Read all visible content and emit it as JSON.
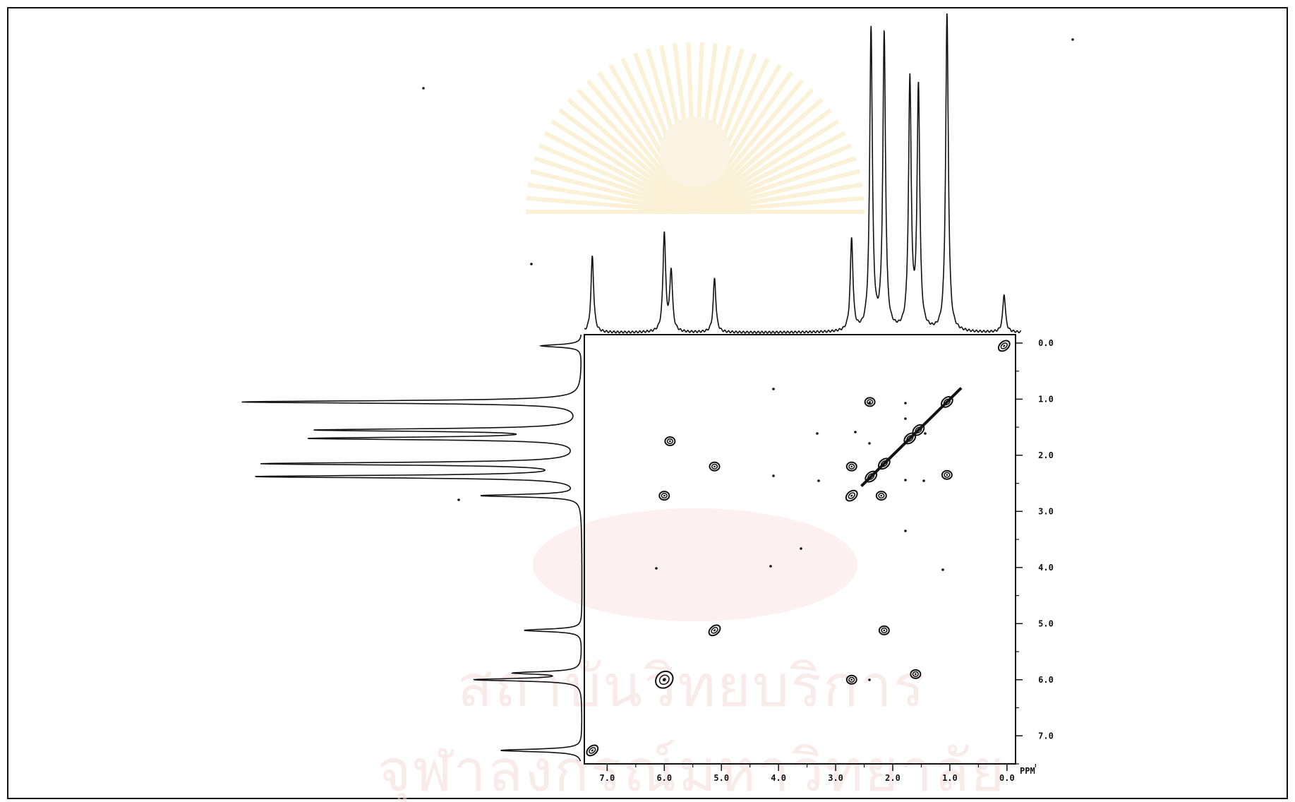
{
  "chart_data": {
    "type": "2D NMR COSY contour plot",
    "x_axis": {
      "unit": "PPM",
      "range": [
        7.4,
        -0.15
      ],
      "ticks": [
        "7.0",
        "6.0",
        "5.0",
        "4.0",
        "3.0",
        "2.0",
        "1.0",
        "0.0"
      ]
    },
    "y_axis": {
      "unit": "PPM",
      "range": [
        -0.15,
        7.5
      ],
      "ticks": [
        "0.0",
        "1.0",
        "2.0",
        "3.0",
        "4.0",
        "5.0",
        "6.0",
        "7.0"
      ]
    },
    "projection_peaks": [
      {
        "ppm": 7.26,
        "height": 0.24
      },
      {
        "ppm": 6.0,
        "height": 0.31
      },
      {
        "ppm": 5.88,
        "height": 0.19
      },
      {
        "ppm": 5.12,
        "height": 0.17
      },
      {
        "ppm": 2.72,
        "height": 0.29
      },
      {
        "ppm": 2.38,
        "height": 0.95
      },
      {
        "ppm": 2.15,
        "height": 0.93
      },
      {
        "ppm": 1.7,
        "height": 0.78
      },
      {
        "ppm": 1.55,
        "height": 0.76
      },
      {
        "ppm": 1.05,
        "height": 1.0
      },
      {
        "ppm": 0.05,
        "height": 0.12
      }
    ],
    "diagonal_peaks": [
      {
        "x": 7.26,
        "y": 7.26
      },
      {
        "x": 6.0,
        "y": 6.0
      },
      {
        "x": 5.12,
        "y": 5.12
      },
      {
        "x": 2.72,
        "y": 2.72
      },
      {
        "x": 2.38,
        "y": 2.38
      },
      {
        "x": 2.15,
        "y": 2.15
      },
      {
        "x": 1.7,
        "y": 1.7
      },
      {
        "x": 1.55,
        "y": 1.55
      },
      {
        "x": 1.05,
        "y": 1.05
      },
      {
        "x": 0.05,
        "y": 0.05
      }
    ],
    "cross_peaks": [
      {
        "x": 2.4,
        "y": 1.05
      },
      {
        "x": 5.12,
        "y": 2.2
      },
      {
        "x": 6.0,
        "y": 2.72
      },
      {
        "x": 2.72,
        "y": 2.2
      },
      {
        "x": 2.2,
        "y": 2.72
      },
      {
        "x": 1.05,
        "y": 2.35
      },
      {
        "x": 2.15,
        "y": 5.12
      },
      {
        "x": 2.72,
        "y": 6.0
      },
      {
        "x": 1.6,
        "y": 5.9
      },
      {
        "x": 5.9,
        "y": 1.75
      }
    ]
  },
  "watermark": {
    "line1": "สถาบันวิทยบริการ",
    "line2": "จุฬาลงกรณ์มหาวิทยาลัย"
  }
}
